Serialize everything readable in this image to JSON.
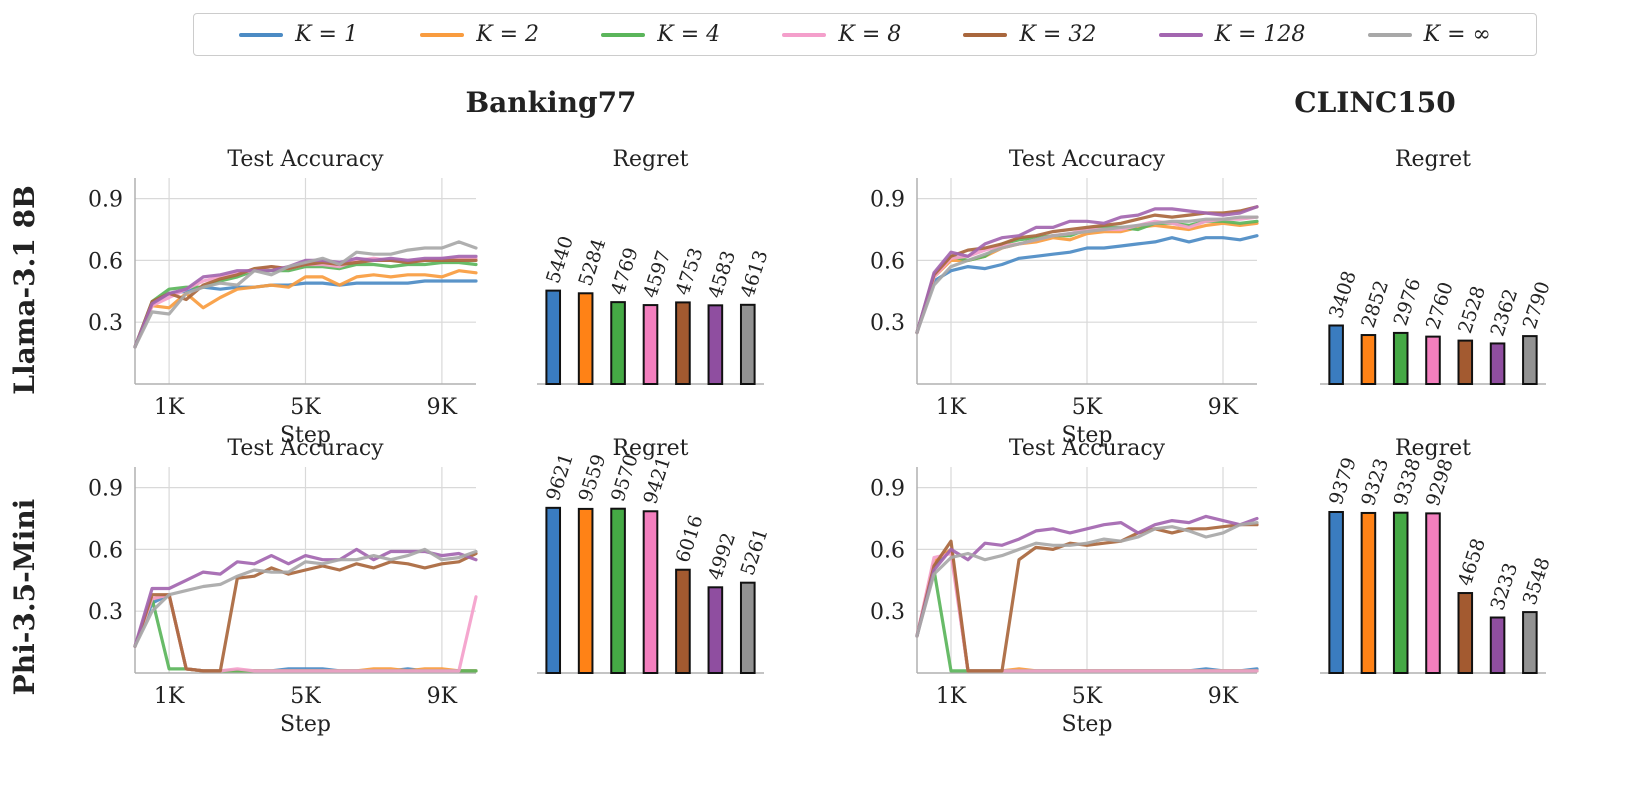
{
  "legend": [
    {
      "label": "K = 1",
      "color": "#4C8BC4"
    },
    {
      "label": "K = 2",
      "color": "#F99C3F"
    },
    {
      "label": "K = 4",
      "color": "#5BB55B"
    },
    {
      "label": "K = 8",
      "color": "#F49FCB"
    },
    {
      "label": "K = 32",
      "color": "#A9673D"
    },
    {
      "label": "K = 128",
      "color": "#A366B0"
    },
    {
      "label": "K = ∞",
      "color": "#A8A8A8"
    }
  ],
  "bar_colors": [
    "#3A7CC0",
    "#FF8216",
    "#45A945",
    "#F37FBE",
    "#A35A30",
    "#8F4EA0",
    "#929292"
  ],
  "datasets": [
    "Banking77",
    "CLINC150"
  ],
  "models": [
    "Llama-3.1 8B",
    "Phi-3.5-Mini"
  ],
  "panel_titles": {
    "accuracy": "Test Accuracy",
    "regret": "Regret"
  },
  "chart_data": [
    {
      "type": "line",
      "dataset": "Banking77",
      "model": "Llama-3.1 8B",
      "title": "Test Accuracy",
      "xlabel": "Step",
      "ylabel": "",
      "xlim": [
        0,
        10000
      ],
      "ylim": [
        0,
        1.0
      ],
      "grid": true,
      "xticks": [
        1000,
        5000,
        9000
      ],
      "xtick_labels": [
        "1K",
        "5K",
        "9K"
      ],
      "yticks": [
        0.3,
        0.6,
        0.9
      ],
      "ytick_labels": [
        "0.3",
        "0.6",
        "0.9"
      ],
      "x": [
        0,
        500,
        1000,
        1500,
        2000,
        2500,
        3000,
        3500,
        4000,
        4500,
        5000,
        5500,
        6000,
        6500,
        7000,
        7500,
        8000,
        8500,
        9000,
        9500,
        10000
      ],
      "series": [
        {
          "name": "K = 1",
          "values": [
            0.18,
            0.39,
            0.44,
            0.45,
            0.47,
            0.46,
            0.47,
            0.47,
            0.48,
            0.48,
            0.49,
            0.49,
            0.48,
            0.49,
            0.49,
            0.49,
            0.49,
            0.5,
            0.5,
            0.5,
            0.5
          ]
        },
        {
          "name": "K = 2",
          "values": [
            0.18,
            0.38,
            0.37,
            0.44,
            0.37,
            0.42,
            0.46,
            0.47,
            0.48,
            0.47,
            0.52,
            0.52,
            0.48,
            0.52,
            0.53,
            0.52,
            0.53,
            0.53,
            0.52,
            0.55,
            0.54
          ]
        },
        {
          "name": "K = 4",
          "values": [
            0.18,
            0.4,
            0.46,
            0.47,
            0.47,
            0.5,
            0.52,
            0.55,
            0.55,
            0.55,
            0.57,
            0.57,
            0.56,
            0.58,
            0.58,
            0.57,
            0.58,
            0.58,
            0.59,
            0.59,
            0.58
          ]
        },
        {
          "name": "K = 8",
          "values": [
            0.18,
            0.38,
            0.42,
            0.46,
            0.5,
            0.52,
            0.54,
            0.55,
            0.57,
            0.56,
            0.58,
            0.58,
            0.57,
            0.6,
            0.61,
            0.6,
            0.6,
            0.6,
            0.61,
            0.61,
            0.61
          ]
        },
        {
          "name": "K = 32",
          "values": [
            0.18,
            0.4,
            0.44,
            0.41,
            0.48,
            0.51,
            0.53,
            0.56,
            0.57,
            0.56,
            0.58,
            0.59,
            0.58,
            0.59,
            0.6,
            0.6,
            0.59,
            0.6,
            0.6,
            0.6,
            0.6
          ]
        },
        {
          "name": "K = 128",
          "values": [
            0.18,
            0.39,
            0.44,
            0.46,
            0.52,
            0.53,
            0.55,
            0.55,
            0.55,
            0.57,
            0.6,
            0.6,
            0.59,
            0.61,
            0.6,
            0.61,
            0.6,
            0.61,
            0.61,
            0.62,
            0.62
          ]
        },
        {
          "name": "K = ∞",
          "values": [
            0.18,
            0.35,
            0.34,
            0.44,
            0.47,
            0.49,
            0.48,
            0.55,
            0.53,
            0.57,
            0.59,
            0.61,
            0.58,
            0.64,
            0.63,
            0.63,
            0.65,
            0.66,
            0.66,
            0.69,
            0.66
          ]
        }
      ]
    },
    {
      "type": "bar",
      "dataset": "Banking77",
      "model": "Llama-3.1 8B",
      "title": "Regret",
      "categories": [
        "K = 1",
        "K = 2",
        "K = 4",
        "K = 8",
        "K = 32",
        "K = 128",
        "K = ∞"
      ],
      "values": [
        5440,
        5284,
        4769,
        4597,
        4753,
        4583,
        4613
      ],
      "ylim": [
        0,
        12000
      ]
    },
    {
      "type": "line",
      "dataset": "CLINC150",
      "model": "Llama-3.1 8B",
      "title": "Test Accuracy",
      "xlabel": "Step",
      "ylabel": "",
      "xlim": [
        0,
        10000
      ],
      "ylim": [
        0,
        1.0
      ],
      "grid": true,
      "xticks": [
        1000,
        5000,
        9000
      ],
      "xtick_labels": [
        "1K",
        "5K",
        "9K"
      ],
      "yticks": [
        0.3,
        0.6,
        0.9
      ],
      "ytick_labels": [
        "0.3",
        "0.6",
        "0.9"
      ],
      "x": [
        0,
        500,
        1000,
        1500,
        2000,
        2500,
        3000,
        3500,
        4000,
        4500,
        5000,
        5500,
        6000,
        6500,
        7000,
        7500,
        8000,
        8500,
        9000,
        9500,
        10000
      ],
      "series": [
        {
          "name": "K = 1",
          "values": [
            0.25,
            0.5,
            0.55,
            0.57,
            0.56,
            0.58,
            0.61,
            0.62,
            0.63,
            0.64,
            0.66,
            0.66,
            0.67,
            0.68,
            0.69,
            0.71,
            0.69,
            0.71,
            0.71,
            0.7,
            0.72
          ]
        },
        {
          "name": "K = 2",
          "values": [
            0.25,
            0.52,
            0.6,
            0.6,
            0.62,
            0.66,
            0.68,
            0.69,
            0.71,
            0.7,
            0.73,
            0.74,
            0.74,
            0.76,
            0.77,
            0.76,
            0.75,
            0.77,
            0.78,
            0.77,
            0.78
          ]
        },
        {
          "name": "K = 4",
          "values": [
            0.25,
            0.53,
            0.62,
            0.6,
            0.62,
            0.68,
            0.7,
            0.71,
            0.72,
            0.72,
            0.75,
            0.76,
            0.76,
            0.75,
            0.78,
            0.78,
            0.77,
            0.79,
            0.79,
            0.78,
            0.79
          ]
        },
        {
          "name": "K = 8",
          "values": [
            0.25,
            0.52,
            0.61,
            0.62,
            0.65,
            0.67,
            0.68,
            0.7,
            0.72,
            0.73,
            0.75,
            0.75,
            0.75,
            0.77,
            0.79,
            0.78,
            0.76,
            0.79,
            0.8,
            0.8,
            0.81
          ]
        },
        {
          "name": "K = 32",
          "values": [
            0.25,
            0.53,
            0.62,
            0.65,
            0.66,
            0.68,
            0.71,
            0.72,
            0.74,
            0.75,
            0.76,
            0.77,
            0.78,
            0.8,
            0.82,
            0.81,
            0.82,
            0.83,
            0.83,
            0.84,
            0.86
          ]
        },
        {
          "name": "K = 128",
          "values": [
            0.25,
            0.54,
            0.64,
            0.62,
            0.68,
            0.71,
            0.72,
            0.76,
            0.76,
            0.79,
            0.79,
            0.78,
            0.81,
            0.82,
            0.85,
            0.85,
            0.84,
            0.83,
            0.82,
            0.83,
            0.86
          ]
        },
        {
          "name": "K = ∞",
          "values": [
            0.25,
            0.48,
            0.57,
            0.6,
            0.63,
            0.66,
            0.68,
            0.7,
            0.72,
            0.73,
            0.74,
            0.75,
            0.76,
            0.77,
            0.78,
            0.79,
            0.79,
            0.8,
            0.8,
            0.81,
            0.81
          ]
        }
      ]
    },
    {
      "type": "bar",
      "dataset": "CLINC150",
      "model": "Llama-3.1 8B",
      "title": "Regret",
      "categories": [
        "K = 1",
        "K = 2",
        "K = 4",
        "K = 8",
        "K = 32",
        "K = 128",
        "K = ∞"
      ],
      "values": [
        3408,
        2852,
        2976,
        2760,
        2528,
        2362,
        2790
      ],
      "ylim": [
        0,
        12000
      ]
    },
    {
      "type": "line",
      "dataset": "Banking77",
      "model": "Phi-3.5-Mini",
      "title": "Test Accuracy",
      "xlabel": "Step",
      "ylabel": "",
      "xlim": [
        0,
        10000
      ],
      "ylim": [
        0,
        1.0
      ],
      "grid": true,
      "xticks": [
        1000,
        5000,
        9000
      ],
      "xtick_labels": [
        "1K",
        "5K",
        "9K"
      ],
      "yticks": [
        0.3,
        0.6,
        0.9
      ],
      "ytick_labels": [
        "0.3",
        "0.6",
        "0.9"
      ],
      "x": [
        0,
        500,
        1000,
        1500,
        2000,
        2500,
        3000,
        3500,
        4000,
        4500,
        5000,
        5500,
        6000,
        6500,
        7000,
        7500,
        8000,
        8500,
        9000,
        9500,
        10000
      ],
      "series": [
        {
          "name": "K = 1",
          "values": [
            0.13,
            0.34,
            0.38,
            0.02,
            0.01,
            0.01,
            0.01,
            0.01,
            0.01,
            0.02,
            0.02,
            0.02,
            0.01,
            0.01,
            0.01,
            0.01,
            0.02,
            0.01,
            0.01,
            0.01,
            0.01
          ]
        },
        {
          "name": "K = 2",
          "values": [
            0.13,
            0.36,
            0.38,
            0.02,
            0.01,
            0.01,
            0.01,
            0.01,
            0.01,
            0.01,
            0.01,
            0.01,
            0.01,
            0.01,
            0.02,
            0.02,
            0.01,
            0.02,
            0.02,
            0.01,
            0.01
          ]
        },
        {
          "name": "K = 4",
          "values": [
            0.13,
            0.36,
            0.02,
            0.02,
            0.01,
            0.01,
            0.01,
            0.01,
            0.01,
            0.01,
            0.01,
            0.01,
            0.01,
            0.01,
            0.01,
            0.01,
            0.01,
            0.01,
            0.01,
            0.01,
            0.01
          ]
        },
        {
          "name": "K = 8",
          "values": [
            0.13,
            0.36,
            0.38,
            0.02,
            0.01,
            0.01,
            0.02,
            0.01,
            0.01,
            0.01,
            0.01,
            0.01,
            0.01,
            0.01,
            0.01,
            0.01,
            0.01,
            0.01,
            0.01,
            0.01,
            0.37
          ]
        },
        {
          "name": "K = 32",
          "values": [
            0.13,
            0.38,
            0.38,
            0.02,
            0.01,
            0.01,
            0.46,
            0.47,
            0.51,
            0.48,
            0.5,
            0.52,
            0.5,
            0.53,
            0.51,
            0.54,
            0.53,
            0.51,
            0.53,
            0.54,
            0.58
          ]
        },
        {
          "name": "K = 128",
          "values": [
            0.13,
            0.41,
            0.41,
            0.45,
            0.49,
            0.48,
            0.54,
            0.53,
            0.57,
            0.53,
            0.57,
            0.55,
            0.55,
            0.6,
            0.55,
            0.59,
            0.59,
            0.59,
            0.57,
            0.58,
            0.55
          ]
        },
        {
          "name": "K = ∞",
          "values": [
            0.13,
            0.3,
            0.38,
            0.4,
            0.42,
            0.43,
            0.47,
            0.5,
            0.49,
            0.49,
            0.54,
            0.53,
            0.55,
            0.55,
            0.57,
            0.55,
            0.57,
            0.6,
            0.55,
            0.56,
            0.59
          ]
        }
      ]
    },
    {
      "type": "bar",
      "dataset": "Banking77",
      "model": "Phi-3.5-Mini",
      "title": "Regret",
      "categories": [
        "K = 1",
        "K = 2",
        "K = 4",
        "K = 8",
        "K = 32",
        "K = 128",
        "K = ∞"
      ],
      "values": [
        9621,
        9559,
        9570,
        9421,
        6016,
        4992,
        5261
      ],
      "ylim": [
        0,
        12000
      ]
    },
    {
      "type": "line",
      "dataset": "CLINC150",
      "model": "Phi-3.5-Mini",
      "title": "Test Accuracy",
      "xlabel": "Step",
      "ylabel": "",
      "xlim": [
        0,
        10000
      ],
      "ylim": [
        0,
        1.0
      ],
      "grid": true,
      "xticks": [
        1000,
        5000,
        9000
      ],
      "xtick_labels": [
        "1K",
        "5K",
        "9K"
      ],
      "yticks": [
        0.3,
        0.6,
        0.9
      ],
      "ytick_labels": [
        "0.3",
        "0.6",
        "0.9"
      ],
      "x": [
        0,
        500,
        1000,
        1500,
        2000,
        2500,
        3000,
        3500,
        4000,
        4500,
        5000,
        5500,
        6000,
        6500,
        7000,
        7500,
        8000,
        8500,
        9000,
        9500,
        10000
      ],
      "series": [
        {
          "name": "K = 1",
          "values": [
            0.18,
            0.52,
            0.6,
            0.01,
            0.01,
            0.01,
            0.01,
            0.01,
            0.01,
            0.01,
            0.01,
            0.01,
            0.01,
            0.01,
            0.01,
            0.01,
            0.01,
            0.02,
            0.01,
            0.01,
            0.02
          ]
        },
        {
          "name": "K = 2",
          "values": [
            0.18,
            0.54,
            0.6,
            0.01,
            0.01,
            0.01,
            0.02,
            0.01,
            0.01,
            0.01,
            0.01,
            0.01,
            0.01,
            0.01,
            0.01,
            0.01,
            0.01,
            0.01,
            0.01,
            0.01,
            0.01
          ]
        },
        {
          "name": "K = 4",
          "values": [
            0.18,
            0.5,
            0.01,
            0.01,
            0.01,
            0.01,
            0.01,
            0.01,
            0.01,
            0.01,
            0.01,
            0.01,
            0.01,
            0.01,
            0.01,
            0.01,
            0.01,
            0.01,
            0.01,
            0.01,
            0.01
          ]
        },
        {
          "name": "K = 8",
          "values": [
            0.18,
            0.56,
            0.58,
            0.01,
            0.01,
            0.01,
            0.01,
            0.01,
            0.01,
            0.01,
            0.01,
            0.01,
            0.01,
            0.01,
            0.01,
            0.01,
            0.01,
            0.01,
            0.01,
            0.01,
            0.01
          ]
        },
        {
          "name": "K = 32",
          "values": [
            0.18,
            0.52,
            0.64,
            0.01,
            0.01,
            0.01,
            0.55,
            0.61,
            0.6,
            0.63,
            0.62,
            0.63,
            0.64,
            0.68,
            0.7,
            0.68,
            0.7,
            0.7,
            0.71,
            0.72,
            0.72
          ]
        },
        {
          "name": "K = 128",
          "values": [
            0.18,
            0.5,
            0.6,
            0.55,
            0.63,
            0.62,
            0.65,
            0.69,
            0.7,
            0.68,
            0.7,
            0.72,
            0.73,
            0.68,
            0.72,
            0.74,
            0.73,
            0.76,
            0.74,
            0.72,
            0.75
          ]
        },
        {
          "name": "K = ∞",
          "values": [
            0.18,
            0.48,
            0.56,
            0.58,
            0.55,
            0.57,
            0.6,
            0.63,
            0.62,
            0.62,
            0.63,
            0.65,
            0.64,
            0.66,
            0.7,
            0.71,
            0.69,
            0.66,
            0.68,
            0.72,
            0.73
          ]
        }
      ]
    },
    {
      "type": "bar",
      "dataset": "CLINC150",
      "model": "Phi-3.5-Mini",
      "title": "Regret",
      "categories": [
        "K = 1",
        "K = 2",
        "K = 4",
        "K = 8",
        "K = 32",
        "K = 128",
        "K = ∞"
      ],
      "values": [
        9379,
        9323,
        9338,
        9298,
        4658,
        3233,
        3548
      ],
      "ylim": [
        0,
        12000
      ]
    }
  ]
}
